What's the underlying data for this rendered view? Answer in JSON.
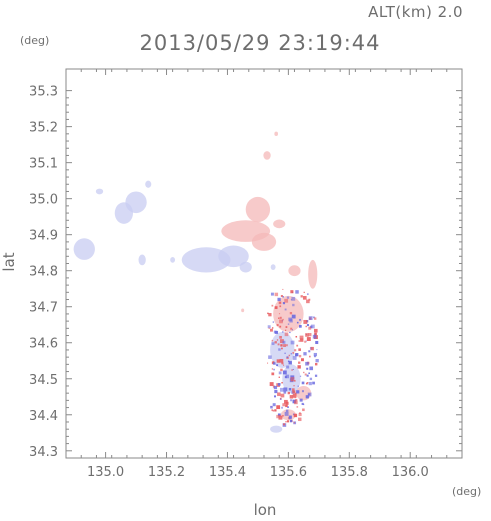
{
  "chart_data": {
    "type": "heatmap",
    "title": "2013/05/29 23:19:44",
    "subtitle": "ALT(km) 2.0",
    "xlabel": "lon",
    "ylabel": "lat",
    "x_unit": "(deg)",
    "y_unit": "(deg)",
    "xlim": [
      134.87,
      136.17
    ],
    "ylim": [
      34.28,
      35.36
    ],
    "x_ticks": [
      135.0,
      135.2,
      135.4,
      135.6,
      135.8,
      136.0
    ],
    "x_tick_labels": [
      "135.0",
      "135.2",
      "135.4",
      "135.6",
      "135.8",
      "136.0"
    ],
    "y_ticks": [
      34.3,
      34.4,
      34.5,
      34.6,
      34.7,
      34.8,
      34.9,
      35.0,
      35.1,
      35.2,
      35.3
    ],
    "y_tick_labels": [
      "34.3",
      "34.4",
      "34.5",
      "34.6",
      "34.7",
      "34.8",
      "34.9",
      "35.0",
      "35.1",
      "35.2",
      "35.3"
    ],
    "grid": false,
    "colors": {
      "positive": "#f4b8b8",
      "negative": "#c8ccf2",
      "strong_positive": "#e8585c",
      "strong_negative": "#6a6ae0"
    },
    "regions": [
      {
        "lon": 134.93,
        "lat": 34.86,
        "rx": 0.035,
        "ry": 0.03,
        "value": -0.3
      },
      {
        "lon": 134.98,
        "lat": 35.02,
        "rx": 0.012,
        "ry": 0.008,
        "value": -0.3
      },
      {
        "lon": 135.06,
        "lat": 34.96,
        "rx": 0.03,
        "ry": 0.03,
        "value": -0.35
      },
      {
        "lon": 135.1,
        "lat": 34.99,
        "rx": 0.035,
        "ry": 0.03,
        "value": -0.3
      },
      {
        "lon": 135.14,
        "lat": 35.04,
        "rx": 0.01,
        "ry": 0.01,
        "value": -0.4
      },
      {
        "lon": 135.12,
        "lat": 34.83,
        "rx": 0.012,
        "ry": 0.015,
        "value": -0.3
      },
      {
        "lon": 135.22,
        "lat": 34.83,
        "rx": 0.008,
        "ry": 0.008,
        "value": -0.3
      },
      {
        "lon": 135.33,
        "lat": 34.83,
        "rx": 0.08,
        "ry": 0.035,
        "value": -0.35
      },
      {
        "lon": 135.42,
        "lat": 34.84,
        "rx": 0.05,
        "ry": 0.03,
        "value": -0.35
      },
      {
        "lon": 135.46,
        "lat": 34.81,
        "rx": 0.02,
        "ry": 0.015,
        "value": -0.3
      },
      {
        "lon": 135.46,
        "lat": 34.91,
        "rx": 0.08,
        "ry": 0.03,
        "value": 0.35
      },
      {
        "lon": 135.5,
        "lat": 34.97,
        "rx": 0.04,
        "ry": 0.035,
        "value": 0.35
      },
      {
        "lon": 135.52,
        "lat": 34.88,
        "rx": 0.04,
        "ry": 0.025,
        "value": 0.3
      },
      {
        "lon": 135.53,
        "lat": 35.12,
        "rx": 0.012,
        "ry": 0.012,
        "value": 0.3
      },
      {
        "lon": 135.56,
        "lat": 35.18,
        "rx": 0.006,
        "ry": 0.006,
        "value": 0.4
      },
      {
        "lon": 135.57,
        "lat": 34.93,
        "rx": 0.02,
        "ry": 0.012,
        "value": 0.3
      },
      {
        "lon": 135.62,
        "lat": 34.8,
        "rx": 0.02,
        "ry": 0.015,
        "value": 0.3
      },
      {
        "lon": 135.68,
        "lat": 34.79,
        "rx": 0.015,
        "ry": 0.04,
        "value": 0.25
      },
      {
        "lon": 135.55,
        "lat": 34.81,
        "rx": 0.008,
        "ry": 0.008,
        "value": -0.3
      },
      {
        "lon": 135.6,
        "lat": 34.68,
        "rx": 0.05,
        "ry": 0.05,
        "value": 0.3
      },
      {
        "lon": 135.58,
        "lat": 34.58,
        "rx": 0.04,
        "ry": 0.05,
        "value": -0.3
      },
      {
        "lon": 135.61,
        "lat": 34.5,
        "rx": 0.03,
        "ry": 0.04,
        "value": -0.25
      },
      {
        "lon": 135.65,
        "lat": 34.46,
        "rx": 0.025,
        "ry": 0.02,
        "value": 0.3
      },
      {
        "lon": 135.6,
        "lat": 34.4,
        "rx": 0.025,
        "ry": 0.015,
        "value": 0.3
      },
      {
        "lon": 135.56,
        "lat": 34.36,
        "rx": 0.02,
        "ry": 0.01,
        "value": -0.2
      },
      {
        "lon": 135.45,
        "lat": 34.69,
        "rx": 0.005,
        "ry": 0.005,
        "value": 0.4
      }
    ],
    "scatter_region": {
      "lon": [
        135.53,
        135.7
      ],
      "lat": [
        34.35,
        34.75
      ]
    }
  }
}
